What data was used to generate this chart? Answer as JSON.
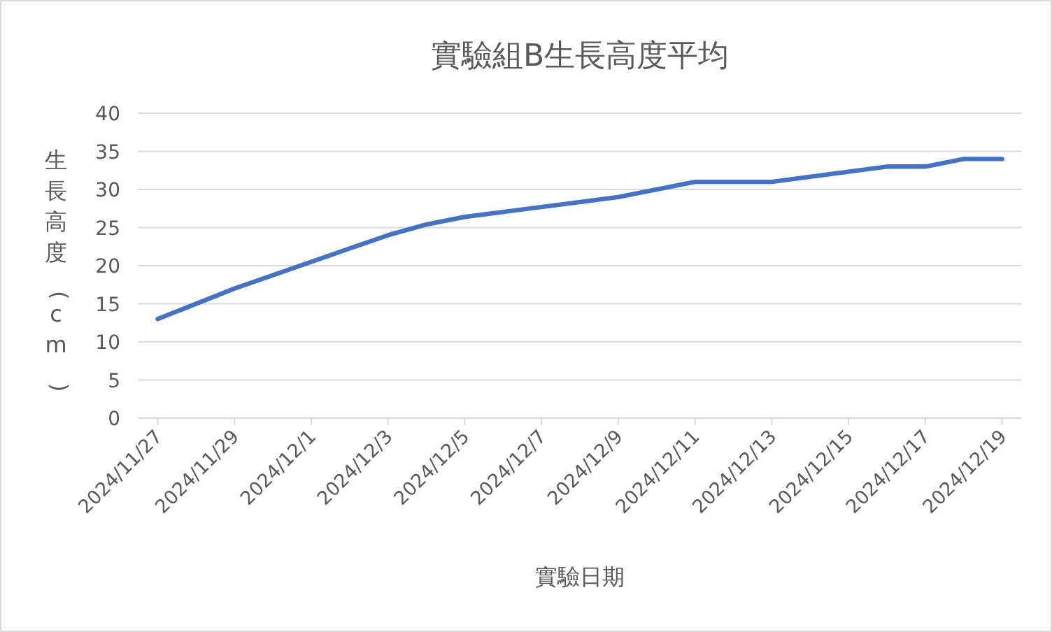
{
  "chart_data": {
    "type": "line",
    "title": "實驗組B生長高度平均",
    "xlabel": "實驗日期",
    "ylabel": "生長高度(cm)",
    "x": [
      "2024-11-27",
      "2024-11-29",
      "2024-12-03",
      "2024-12-04",
      "2024-12-05",
      "2024-12-07",
      "2024-12-09",
      "2024-12-11",
      "2024-12-13",
      "2024-12-16",
      "2024-12-17",
      "2024-12-18",
      "2024-12-19"
    ],
    "series": [
      {
        "color": "#4472c4",
        "values": [
          13,
          17,
          24,
          25.4,
          26.4,
          27.7,
          29,
          31,
          31,
          33,
          33,
          34,
          34
        ]
      }
    ],
    "xlim": [
      "2024-11-26T12:00",
      "2024-12-19T12:00"
    ],
    "xticks": [
      {
        "value": "2024-11-27",
        "label": "2024/11/27"
      },
      {
        "value": "2024-11-29",
        "label": "2024/11/29"
      },
      {
        "value": "2024-12-01",
        "label": "2024/12/1"
      },
      {
        "value": "2024-12-03",
        "label": "2024/12/3"
      },
      {
        "value": "2024-12-05",
        "label": "2024/12/5"
      },
      {
        "value": "2024-12-07",
        "label": "2024/12/7"
      },
      {
        "value": "2024-12-09",
        "label": "2024/12/9"
      },
      {
        "value": "2024-12-11",
        "label": "2024/12/11"
      },
      {
        "value": "2024-12-13",
        "label": "2024/12/13"
      },
      {
        "value": "2024-12-15",
        "label": "2024/12/15"
      },
      {
        "value": "2024-12-17",
        "label": "2024/12/17"
      },
      {
        "value": "2024-12-19",
        "label": "2024/12/19"
      }
    ],
    "ylim": [
      0,
      40
    ],
    "yticks": [
      0,
      5,
      10,
      15,
      20,
      25,
      30,
      35,
      40
    ],
    "grid": "y",
    "marker": "none",
    "line_style": "solid"
  }
}
